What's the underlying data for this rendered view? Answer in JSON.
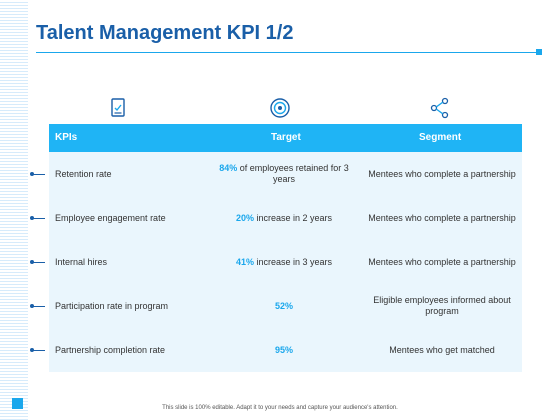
{
  "title": "Talent Management KPI 1/2",
  "colors": {
    "accent": "#1aa7ec",
    "title": "#1a5fa8",
    "header_bg": "#1fb4f5",
    "table_bg": "#eaf6fd"
  },
  "icons": [
    "checklist-icon",
    "target-icon",
    "share-icon"
  ],
  "table": {
    "headers": {
      "kpis": "KPIs",
      "target": "Target",
      "segment": "Segment"
    },
    "rows": [
      {
        "kpi": "Retention rate",
        "target_value": "84%",
        "target_text": " of employees retained for 3 years",
        "segment": "Mentees who complete a partnership"
      },
      {
        "kpi": "Employee engagement rate",
        "target_value": "20%",
        "target_text": " increase in 2 years",
        "segment": "Mentees who complete a partnership"
      },
      {
        "kpi": "Internal hires",
        "target_value": "41%",
        "target_text": " increase in 3 years",
        "segment": "Mentees who complete a partnership"
      },
      {
        "kpi": "Participation rate in program",
        "target_value": "52%",
        "target_text": "",
        "segment": "Eligible employees informed about program"
      },
      {
        "kpi": "Partnership completion rate",
        "target_value": "95%",
        "target_text": "",
        "segment": "Mentees who get matched"
      }
    ]
  },
  "footer": "This slide is 100% editable. Adapt it to your needs and capture your audience's attention."
}
